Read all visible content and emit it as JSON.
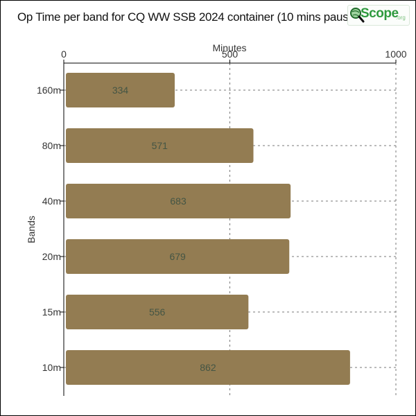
{
  "chart_data": {
    "type": "bar",
    "orientation": "horizontal",
    "title": "Op Time per band for CQ WW SSB 2024 container (10 mins paus",
    "xlabel": "Minutes",
    "ylabel": "Bands",
    "xlim": [
      0,
      1000
    ],
    "xticks": [
      "0",
      "500",
      "1000"
    ],
    "x_axis_position": "top",
    "grid": "vertical dashed",
    "bar_color": "#937c52",
    "categories": [
      "160m",
      "80m",
      "40m",
      "20m",
      "15m",
      "10m"
    ],
    "values": [
      334,
      571,
      683,
      679,
      556,
      862
    ]
  },
  "logo": {
    "name": "Scope",
    "suffix": ".org"
  }
}
